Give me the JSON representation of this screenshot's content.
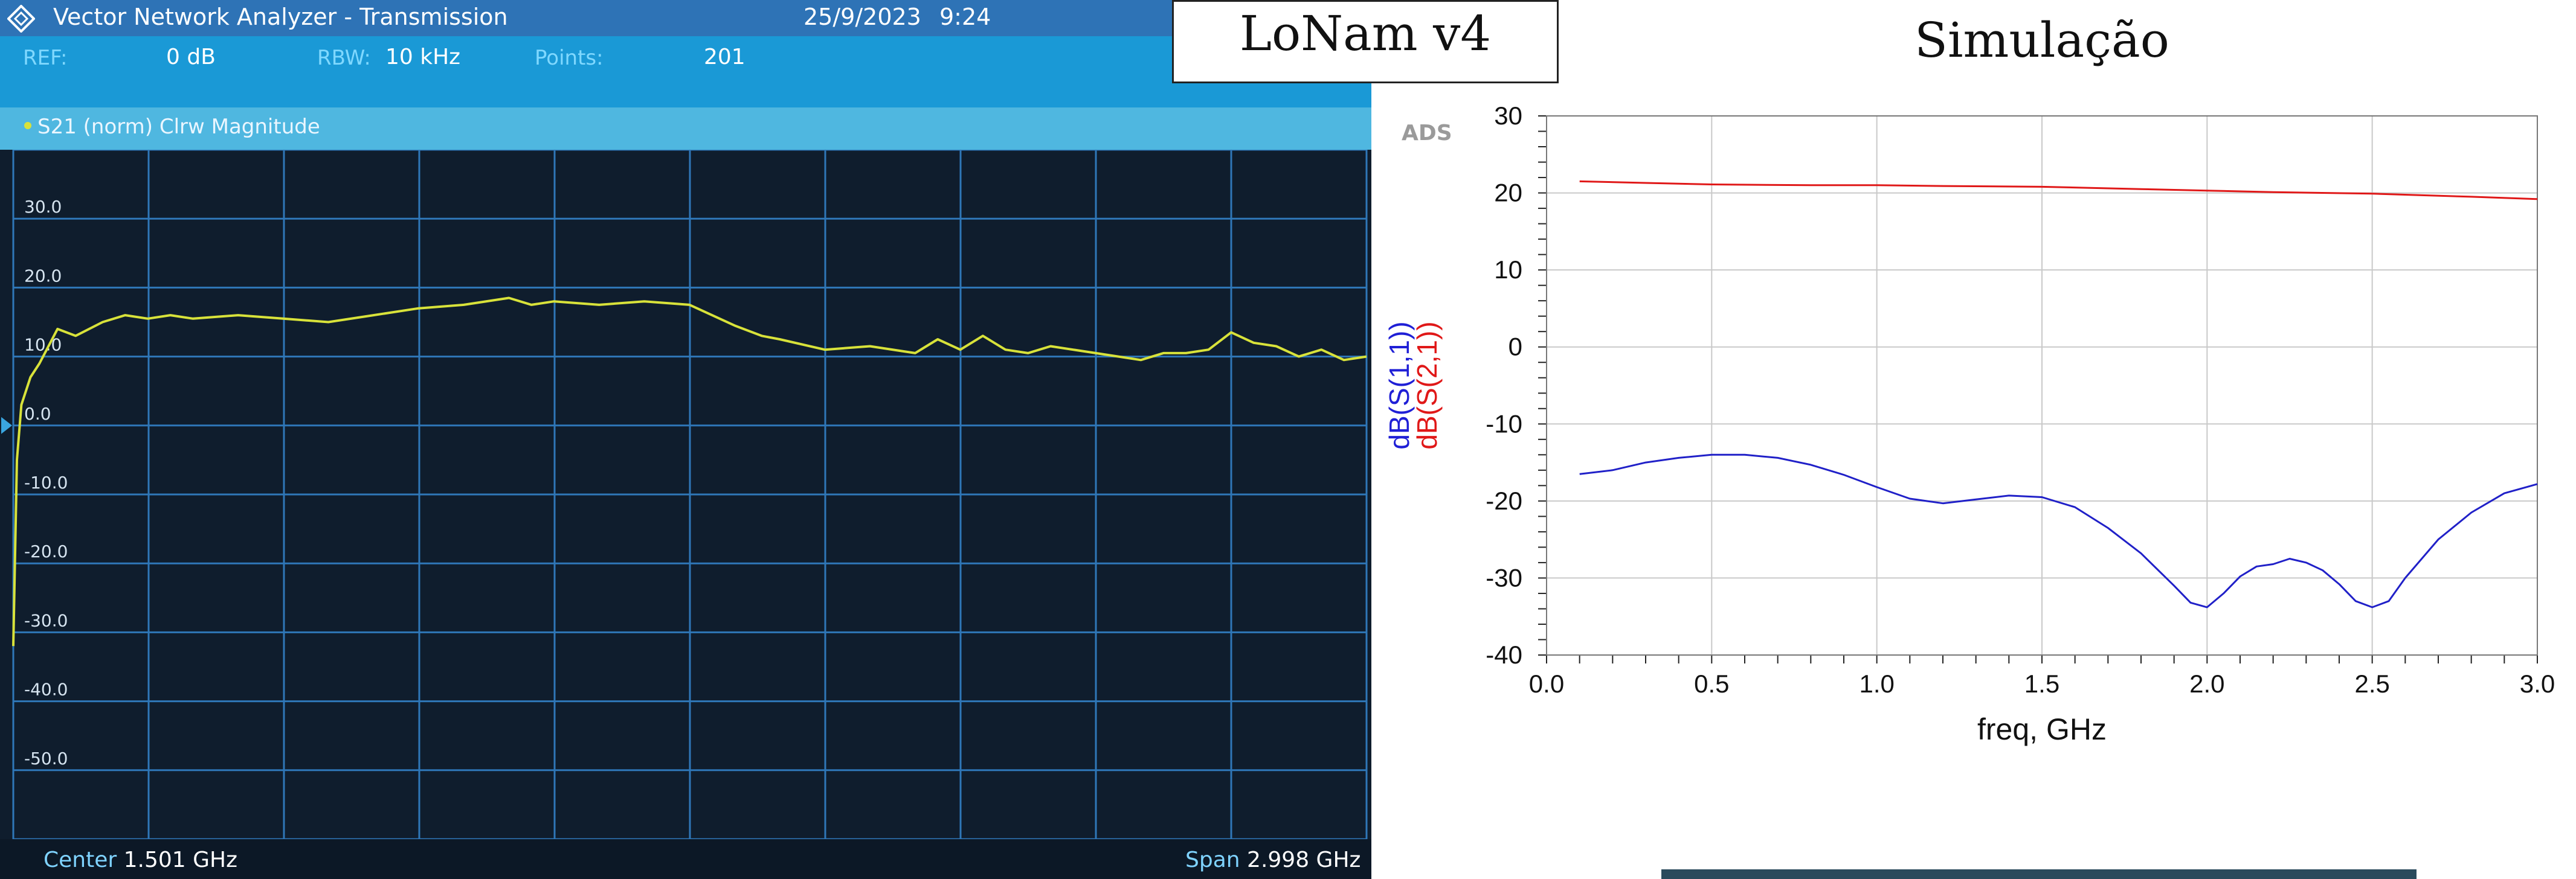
{
  "vna": {
    "title": "Vector Network Analyzer - Transmission",
    "date": "25/9/2023",
    "time": "9:24",
    "ref_label": "REF:",
    "ref_value": "0 dB",
    "rbw_label": "RBW:",
    "rbw_value": "10 kHz",
    "points_label": "Points:",
    "points_value": "201",
    "trace_label": "S21 (norm) Clrw Magnitude",
    "center_label": "Center",
    "center_value": "1.501 GHz",
    "span_label": "Span",
    "span_value": "2.998 GHz",
    "colors": {
      "header": "#2e73b6",
      "info": "#1a99d6",
      "trace_bar": "#4fb7e0",
      "background": "#0f1d2d",
      "grid": "#2f77b8",
      "trace": "#d8e23a"
    }
  },
  "lonam_title": "LoNam v4",
  "sim_title": "Simulação",
  "chart_data": [
    {
      "type": "line",
      "ytick_labels": [
        "30.0",
        "20.0",
        "10.0",
        "0.0",
        "-10.0",
        "-20.0",
        "-30.0",
        "-40.0",
        "-50.0"
      ],
      "ylim": [
        -60,
        40
      ],
      "xlim": [
        0.002,
        3.0
      ],
      "grid": true,
      "series": [
        {
          "name": "S21 (norm) Clrw Magnitude",
          "color": "#d8e23a",
          "x": [
            0.002,
            0.01,
            0.02,
            0.04,
            0.06,
            0.1,
            0.14,
            0.2,
            0.25,
            0.3,
            0.35,
            0.4,
            0.5,
            0.6,
            0.7,
            0.8,
            0.9,
            1.0,
            1.1,
            1.15,
            1.2,
            1.3,
            1.4,
            1.5,
            1.6,
            1.66,
            1.7,
            1.8,
            1.9,
            2.0,
            2.05,
            2.1,
            2.15,
            2.2,
            2.25,
            2.3,
            2.4,
            2.5,
            2.55,
            2.6,
            2.65,
            2.7,
            2.75,
            2.8,
            2.85,
            2.9,
            2.95,
            3.0
          ],
          "y": [
            -32,
            -5,
            3,
            7,
            9,
            14,
            13,
            15,
            16,
            15.5,
            16,
            15.5,
            16,
            15.5,
            15,
            16,
            17,
            17.5,
            18.5,
            17.5,
            18,
            17.5,
            18,
            17.5,
            14.5,
            13,
            12.5,
            11,
            11.5,
            10.5,
            12.5,
            11,
            13,
            11,
            10.5,
            11.5,
            10.5,
            9.5,
            10.5,
            10.5,
            11,
            13.5,
            12,
            11.5,
            10,
            11,
            9.5,
            10
          ]
        }
      ]
    },
    {
      "type": "line",
      "xlabel": "freq, GHz",
      "watermark": "ADS",
      "xlim": [
        0,
        3
      ],
      "ylim": [
        -40,
        30
      ],
      "xticks": [
        "0.0",
        "0.5",
        "1.0",
        "1.5",
        "2.0",
        "2.5",
        "3.0"
      ],
      "yticks": [
        "30",
        "20",
        "10",
        "0",
        "-10",
        "-20",
        "-30",
        "-40"
      ],
      "grid": true,
      "ylabel_parts": [
        {
          "text": "dB(S(1,1))",
          "color": "#1f1fd6"
        },
        {
          "text": "dB(S(2,1))",
          "color": "#e01818"
        }
      ],
      "series": [
        {
          "name": "dB(S(2,1))",
          "color": "#e01818",
          "x": [
            0.1,
            0.3,
            0.5,
            0.8,
            1.0,
            1.2,
            1.5,
            1.8,
            2.0,
            2.2,
            2.5,
            2.8,
            3.0
          ],
          "y": [
            21.5,
            21.3,
            21.1,
            21.0,
            21.0,
            20.9,
            20.8,
            20.5,
            20.3,
            20.1,
            19.9,
            19.5,
            19.2
          ]
        },
        {
          "name": "dB(S(1,1))",
          "color": "#2020c8",
          "x": [
            0.1,
            0.2,
            0.3,
            0.4,
            0.5,
            0.6,
            0.7,
            0.8,
            0.9,
            1.0,
            1.1,
            1.2,
            1.3,
            1.4,
            1.5,
            1.6,
            1.7,
            1.8,
            1.9,
            1.95,
            2.0,
            2.05,
            2.1,
            2.15,
            2.2,
            2.25,
            2.3,
            2.35,
            2.4,
            2.45,
            2.5,
            2.55,
            2.6,
            2.7,
            2.8,
            2.9,
            3.0
          ],
          "y": [
            -16.5,
            -16.0,
            -15.0,
            -14.4,
            -14.0,
            -14.0,
            -14.4,
            -15.3,
            -16.6,
            -18.2,
            -19.7,
            -20.3,
            -19.8,
            -19.3,
            -19.5,
            -20.8,
            -23.5,
            -26.8,
            -31.0,
            -33.2,
            -33.8,
            -32.0,
            -29.8,
            -28.5,
            -28.2,
            -27.5,
            -28.0,
            -29.0,
            -30.8,
            -33.0,
            -33.8,
            -33.0,
            -30.0,
            -25.0,
            -21.5,
            -19.0,
            -17.8
          ]
        }
      ]
    }
  ]
}
